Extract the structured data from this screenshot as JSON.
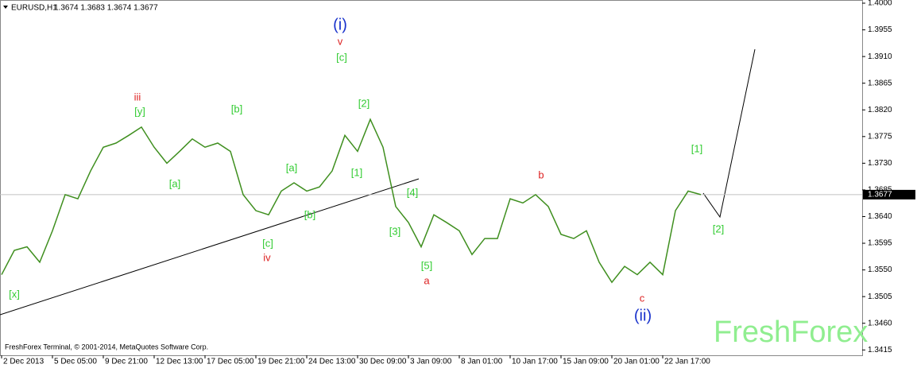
{
  "chart_data": {
    "type": "line",
    "title": "EURUSD,H1",
    "subtitle": "1.3674 1.3683 1.3674 1.3677",
    "footer": "FreshForex Terminal, © 2001-2014, MetaQuotes Software Corp.",
    "watermark": "FreshForex",
    "last_price": 1.3677,
    "categories": [
      "2 Dec 2013",
      null,
      null,
      null,
      "5 Dec 05:00",
      null,
      null,
      null,
      "9 Dec 21:00",
      null,
      null,
      null,
      "12 Dec 13:00",
      null,
      null,
      null,
      "17 Dec 05:00",
      null,
      null,
      null,
      "19 Dec 21:00",
      null,
      null,
      null,
      "24 Dec 13:00",
      null,
      null,
      null,
      "30 Dec 09:00",
      null,
      null,
      null,
      "3 Jan 09:00",
      null,
      null,
      null,
      "8 Jan 01:00",
      null,
      null,
      null,
      "10 Jan 17:00",
      null,
      null,
      null,
      "15 Jan 09:00",
      null,
      null,
      null,
      "20 Jan 01:00",
      null,
      null,
      null,
      "22 Jan 17:00",
      null,
      null,
      null
    ],
    "series": [
      {
        "name": "EURUSD",
        "color": "#3f8f1f",
        "values": [
          1.3542,
          1.3583,
          1.3589,
          1.3563,
          1.3616,
          1.3677,
          1.367,
          1.3717,
          1.3757,
          1.3764,
          1.3777,
          1.3791,
          1.3757,
          1.373,
          1.375,
          1.3771,
          1.3757,
          1.3764,
          1.375,
          1.3677,
          1.365,
          1.3643,
          1.3683,
          1.3697,
          1.3683,
          1.369,
          1.3717,
          1.3777,
          1.375,
          1.3804,
          1.3757,
          1.3657,
          1.363,
          1.3589,
          1.3643,
          1.363,
          1.3616,
          1.3576,
          1.3603,
          1.3603,
          1.367,
          1.3663,
          1.3677,
          1.3657,
          1.361,
          1.3603,
          1.3616,
          1.3563,
          1.3529,
          1.3556,
          1.3542,
          1.3563,
          1.3542,
          1.365,
          1.3683,
          1.3677
        ]
      }
    ],
    "ylim": [
      1.3406,
      1.4
    ],
    "yticks": [
      {
        "value": 1.4,
        "label": "1.4000"
      },
      1.3955,
      {
        "value": 1.391,
        "label": "1.3910"
      },
      1.3865,
      {
        "value": 1.382,
        "label": "1.3820"
      },
      1.3775,
      {
        "value": 1.373,
        "label": "1.3730"
      },
      1.3685,
      {
        "value": 1.364,
        "label": "1.3640"
      },
      1.3595,
      {
        "value": 1.355,
        "label": "1.3550"
      },
      1.3505,
      {
        "value": 1.346,
        "label": "1.3460"
      },
      1.3415
    ],
    "annotations": [
      {
        "text": "[x]",
        "color": "#33cc33"
      },
      {
        "text": "iii",
        "color": "#dd2222"
      },
      {
        "text": "[y]",
        "color": "#33cc33"
      },
      {
        "text": "[a]",
        "color": "#33cc33"
      },
      {
        "text": "[b]",
        "color": "#33cc33"
      },
      {
        "text": "[a]",
        "color": "#33cc33"
      },
      {
        "text": "[b]",
        "color": "#33cc33"
      },
      {
        "text": "[c]",
        "color": "#33cc33"
      },
      {
        "text": "iv",
        "color": "#dd2222"
      },
      {
        "text": "(i)",
        "color": "#1a33cc"
      },
      {
        "text": "v",
        "color": "#dd2222"
      },
      {
        "text": "[c]",
        "color": "#33cc33"
      },
      {
        "text": "[2]",
        "color": "#33cc33"
      },
      {
        "text": "[1]",
        "color": "#33cc33"
      },
      {
        "text": "[4]",
        "color": "#33cc33"
      },
      {
        "text": "[3]",
        "color": "#33cc33"
      },
      {
        "text": "[5]",
        "color": "#33cc33"
      },
      {
        "text": "a",
        "color": "#dd2222"
      },
      {
        "text": "b",
        "color": "#dd2222"
      },
      {
        "text": "c",
        "color": "#dd2222"
      },
      {
        "text": "(ii)",
        "color": "#1a33cc"
      },
      {
        "text": "[1]",
        "color": "#33cc33"
      },
      {
        "text": "[2]",
        "color": "#33cc33"
      }
    ]
  }
}
